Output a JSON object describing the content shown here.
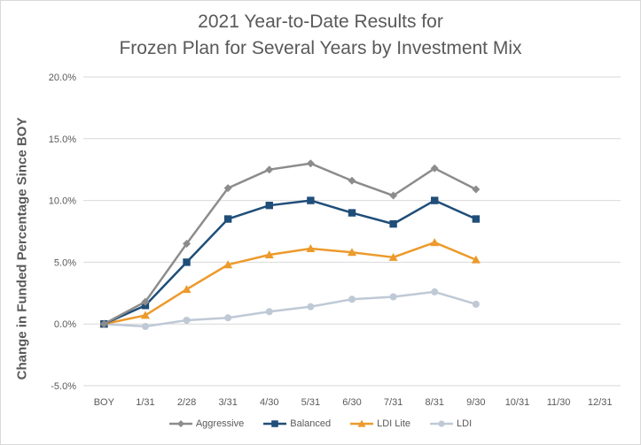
{
  "chart_data": {
    "type": "line",
    "title_line1": "2021 Year-to-Date Results for",
    "title_line2": "Frozen Plan for Several Years by Investment Mix",
    "xlabel": "",
    "ylabel": "Change in Funded Percentage Since BOY",
    "categories": [
      "BOY",
      "1/31",
      "2/28",
      "3/31",
      "4/30",
      "5/31",
      "6/30",
      "7/31",
      "8/31",
      "9/30",
      "10/31",
      "11/30",
      "12/31"
    ],
    "ylim": [
      -5.0,
      20.0
    ],
    "yticks": [
      -5.0,
      0.0,
      5.0,
      10.0,
      15.0,
      20.0
    ],
    "ytick_labels": [
      "-5.0%",
      "0.0%",
      "5.0%",
      "10.0%",
      "15.0%",
      "20.0%"
    ],
    "grid": "horizontal",
    "legend_position": "bottom",
    "series": [
      {
        "name": "Aggressive",
        "color": "#8c8c8c",
        "marker": "diamond",
        "values": [
          0.0,
          1.8,
          6.5,
          11.0,
          12.5,
          13.0,
          11.6,
          10.4,
          12.6,
          10.9,
          null,
          null,
          null
        ]
      },
      {
        "name": "Balanced",
        "color": "#1f4e79",
        "marker": "square",
        "values": [
          0.0,
          1.5,
          5.0,
          8.5,
          9.6,
          10.0,
          9.0,
          8.1,
          10.0,
          8.5,
          null,
          null,
          null
        ]
      },
      {
        "name": "LDI Lite",
        "color": "#ed9a2c",
        "marker": "triangle",
        "values": [
          0.0,
          0.7,
          2.8,
          4.8,
          5.6,
          6.1,
          5.8,
          5.4,
          6.6,
          5.2,
          null,
          null,
          null
        ]
      },
      {
        "name": "LDI",
        "color": "#bfc9d6",
        "marker": "circle",
        "values": [
          0.0,
          -0.2,
          0.3,
          0.5,
          1.0,
          1.4,
          2.0,
          2.2,
          2.6,
          1.6,
          null,
          null,
          null
        ]
      }
    ]
  }
}
